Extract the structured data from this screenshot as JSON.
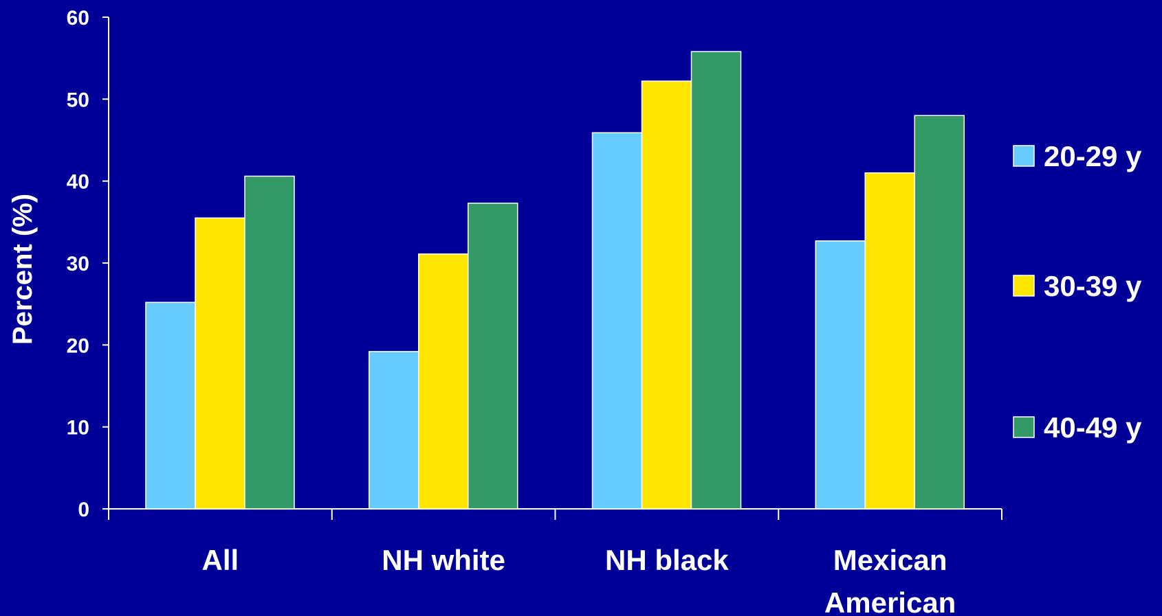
{
  "chart_data": {
    "type": "bar",
    "ylabel": "Percent (%)",
    "xlabel": "",
    "ylim": [
      0,
      60
    ],
    "yticks": [
      0,
      10,
      20,
      30,
      40,
      50,
      60
    ],
    "categories": [
      [
        "All"
      ],
      [
        "NH white"
      ],
      [
        "NH black"
      ],
      [
        "Mexican",
        "American"
      ]
    ],
    "series": [
      {
        "name": "20-29 y",
        "color": "#66ccff",
        "values": [
          25.2,
          19.2,
          45.9,
          32.7
        ]
      },
      {
        "name": "30-39 y",
        "color": "#ffe600",
        "values": [
          35.5,
          31.1,
          52.2,
          41.0
        ]
      },
      {
        "name": "40-49 y",
        "color": "#339966",
        "values": [
          40.6,
          37.3,
          55.8,
          48.0
        ]
      }
    ],
    "grid": false,
    "legend": "right",
    "colors": {
      "background": "#000099",
      "axis": "#ffffff",
      "bar_outline": "#ffffff"
    }
  }
}
